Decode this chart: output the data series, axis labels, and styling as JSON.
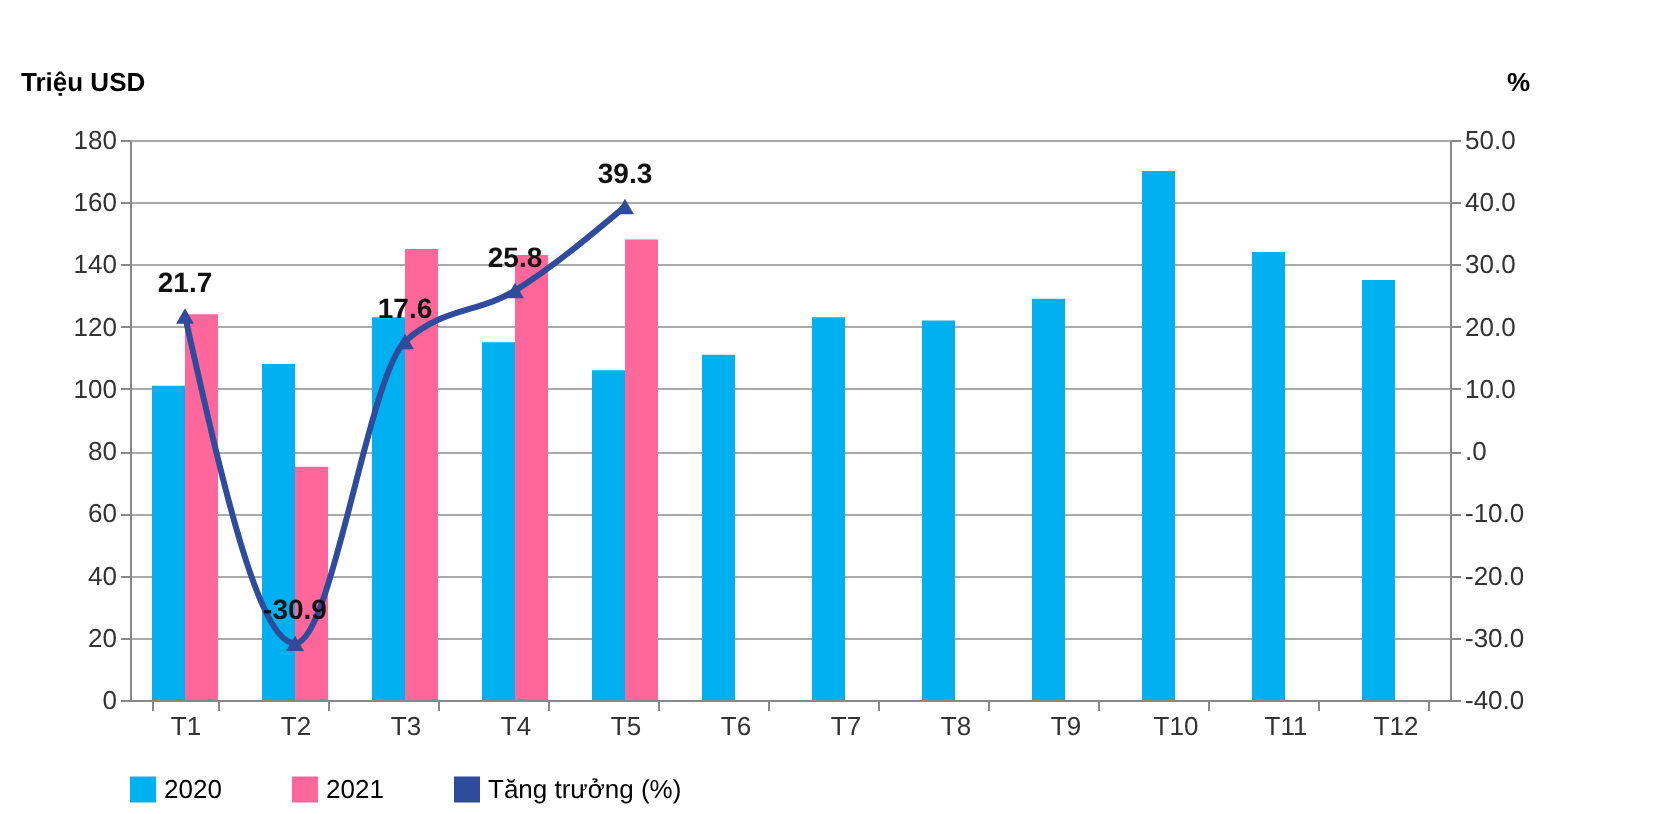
{
  "chart_data": {
    "type": "bar",
    "categories": [
      "T1",
      "T2",
      "T3",
      "T4",
      "T5",
      "T6",
      "T7",
      "T8",
      "T9",
      "T10",
      "T11",
      "T12"
    ],
    "ylabel": "Triệu USD",
    "y2label": "%",
    "ylim": [
      0,
      180
    ],
    "yticks": [
      0,
      20,
      40,
      60,
      80,
      100,
      120,
      140,
      160,
      180
    ],
    "y2lim": [
      -40,
      50
    ],
    "y2ticks": [
      {
        "value": -40,
        "label": "-40.0"
      },
      {
        "value": -30,
        "label": "-30.0"
      },
      {
        "value": -20,
        "label": "-20.0"
      },
      {
        "value": -10,
        "label": "-10.0"
      },
      {
        "value": 0,
        "label": ".0"
      },
      {
        "value": 10,
        "label": "10.0"
      },
      {
        "value": 20,
        "label": "20.0"
      },
      {
        "value": 30,
        "label": "30.0"
      },
      {
        "value": 40,
        "label": "40.0"
      },
      {
        "value": 50,
        "label": "50.0"
      }
    ],
    "grid": "y",
    "legend": "bottom",
    "series": [
      {
        "name": "2020",
        "color": "#00b0f0",
        "values": [
          101,
          108,
          123,
          115,
          106,
          111,
          123,
          122,
          129,
          170,
          144,
          135
        ]
      },
      {
        "name": "2021",
        "color": "#ff6699",
        "values": [
          124,
          75,
          145,
          143,
          148,
          null,
          null,
          null,
          null,
          null,
          null,
          null
        ]
      },
      {
        "name": "Tăng trưởng (%)",
        "type": "line",
        "axis": "y2",
        "color": "#2f4b9c",
        "marker": "triangle",
        "values": [
          21.7,
          -30.9,
          17.6,
          25.8,
          39.3,
          null,
          null,
          null,
          null,
          null,
          null,
          null
        ],
        "value_labels": [
          "21.7",
          "-30.9",
          "17.6",
          "25.8",
          "39.3",
          null,
          null,
          null,
          null,
          null,
          null,
          null
        ]
      }
    ]
  }
}
